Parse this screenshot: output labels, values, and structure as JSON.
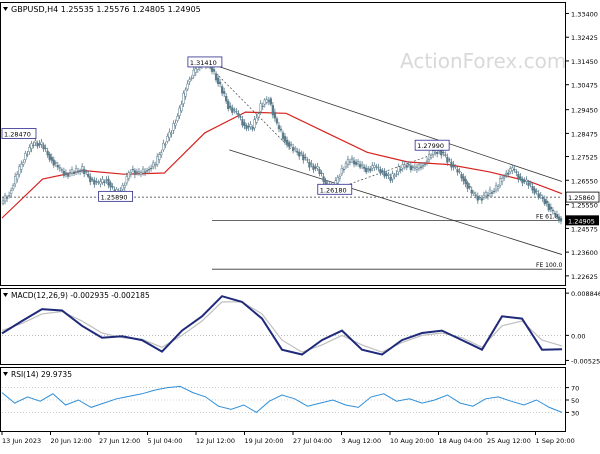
{
  "chart_data": [
    {
      "type": "candlestick",
      "title": "GBPUSD,H4  1.25535 1.25576 1.24805 1.24905",
      "watermark": "ActionForex.com",
      "ylim": [
        1.2225,
        1.3383
      ],
      "y_ticks": [
        "1.33400",
        "1.32425",
        "1.31450",
        "1.30475",
        "1.29450",
        "1.28475",
        "1.27525",
        "1.26550",
        "1.25550",
        "1.24575",
        "1.23600",
        "1.22625"
      ],
      "x_ticks": [
        "13 Jun 2023",
        "20 Jun 12:00",
        "27 Jun 12:00",
        "5 Jul 04:00",
        "12 Jul 12:00",
        "19 Jul 20:00",
        "27 Jul 04:00",
        "3 Aug 12:00",
        "10 Aug 20:00",
        "18 Aug 04:00",
        "25 Aug 12:00",
        "1 Sep 20:00"
      ],
      "close_path": [
        [
          0,
          1.256
        ],
        [
          1,
          1.26
        ],
        [
          2,
          1.268
        ],
        [
          3,
          1.276
        ],
        [
          4,
          1.281
        ],
        [
          5,
          1.28
        ],
        [
          6,
          1.275
        ],
        [
          7,
          1.2705
        ],
        [
          8,
          1.268
        ],
        [
          9,
          1.269
        ],
        [
          10,
          1.27
        ],
        [
          11,
          1.266
        ],
        [
          12,
          1.264
        ],
        [
          13,
          1.266
        ],
        [
          14,
          1.26
        ],
        [
          15,
          1.2625
        ],
        [
          16,
          1.27
        ],
        [
          17,
          1.268
        ],
        [
          18,
          1.27
        ],
        [
          19,
          1.272
        ],
        [
          20,
          1.28
        ],
        [
          21,
          1.286
        ],
        [
          22,
          1.294
        ],
        [
          23,
          1.306
        ],
        [
          24,
          1.311
        ],
        [
          25,
          1.3141
        ],
        [
          26,
          1.311
        ],
        [
          27,
          1.304
        ],
        [
          28,
          1.296
        ],
        [
          29,
          1.293
        ],
        [
          30,
          1.288
        ],
        [
          31,
          1.287
        ],
        [
          32,
          1.296
        ],
        [
          33,
          1.299
        ],
        [
          34,
          1.288
        ],
        [
          35,
          1.282
        ],
        [
          36,
          1.278
        ],
        [
          37,
          1.276
        ],
        [
          38,
          1.272
        ],
        [
          39,
          1.27
        ],
        [
          40,
          1.264
        ],
        [
          41,
          1.2625
        ],
        [
          42,
          1.27
        ],
        [
          43,
          1.274
        ],
        [
          44,
          1.272
        ],
        [
          45,
          1.27
        ],
        [
          46,
          1.271
        ],
        [
          47,
          1.269
        ],
        [
          48,
          1.266
        ],
        [
          49,
          1.27
        ],
        [
          50,
          1.272
        ],
        [
          51,
          1.27
        ],
        [
          52,
          1.272
        ],
        [
          53,
          1.276
        ],
        [
          54,
          1.278
        ],
        [
          55,
          1.274
        ],
        [
          56,
          1.27
        ],
        [
          57,
          1.266
        ],
        [
          58,
          1.26
        ],
        [
          59,
          1.258
        ],
        [
          60,
          1.26
        ],
        [
          61,
          1.262
        ],
        [
          62,
          1.268
        ],
        [
          63,
          1.27
        ],
        [
          64,
          1.266
        ],
        [
          65,
          1.264
        ],
        [
          66,
          1.26
        ],
        [
          67,
          1.257
        ],
        [
          68,
          1.252
        ],
        [
          69,
          1.2491
        ]
      ],
      "ma_path": [
        [
          0,
          1.25
        ],
        [
          5,
          1.266
        ],
        [
          10,
          1.2695
        ],
        [
          15,
          1.268
        ],
        [
          20,
          1.2685
        ],
        [
          25,
          1.285
        ],
        [
          30,
          1.2935
        ],
        [
          35,
          1.293
        ],
        [
          40,
          1.285
        ],
        [
          45,
          1.277
        ],
        [
          50,
          1.273
        ],
        [
          55,
          1.272
        ],
        [
          60,
          1.269
        ],
        [
          65,
          1.265
        ],
        [
          69,
          1.26
        ]
      ],
      "price_labels": [
        {
          "text": "1.31410",
          "i": 25,
          "y": 1.3141
        },
        {
          "text": "1.28470",
          "i": 0,
          "y": 1.2847
        },
        {
          "text": "1.25890",
          "i": 14,
          "y": 1.2589
        },
        {
          "text": "1.26180",
          "i": 41,
          "y": 1.2618
        },
        {
          "text": "1.27990",
          "i": 53,
          "y": 1.2799
        }
      ],
      "hlines": [
        {
          "y": 1.2586,
          "style": "dash",
          "label": "1.25860"
        },
        {
          "y": 1.249,
          "style": "solid",
          "label": "FE 61.8"
        },
        {
          "y": 1.229,
          "style": "solid",
          "label": "FE 100.0"
        }
      ],
      "current_price_label": "1.24905",
      "channel": {
        "upper": [
          [
            25,
            1.3141
          ],
          [
            69,
            1.265
          ]
        ],
        "lower": [
          [
            28,
            1.278
          ],
          [
            69,
            1.235
          ]
        ]
      }
    },
    {
      "type": "line",
      "title": "MACD(12,26,9) -0.002935 -0.002185",
      "ylim": [
        -0.006,
        0.0095
      ],
      "y_ticks": [
        "0.008846",
        "0.00",
        "-0.005252"
      ],
      "series": [
        {
          "values": [
            0.0004,
            0.003,
            0.0055,
            0.0052,
            0.002,
            -0.0005,
            -0.0002,
            -0.001,
            -0.0034,
            0.001,
            0.004,
            0.0082,
            0.007,
            0.0035,
            -0.003,
            -0.004,
            -0.001,
            0.001,
            -0.003,
            -0.004,
            -0.001,
            0.0005,
            0.001,
            -0.001,
            -0.003,
            0.004,
            0.0035,
            -0.003,
            -0.0029
          ]
        },
        {
          "values": [
            0.001,
            0.0025,
            0.0045,
            0.005,
            0.003,
            0.0005,
            -0.0005,
            -0.0008,
            -0.0025,
            0.0,
            0.003,
            0.007,
            0.007,
            0.0045,
            -0.001,
            -0.0035,
            -0.002,
            0.0,
            -0.002,
            -0.0035,
            -0.0015,
            0.0,
            0.0005,
            -0.0005,
            -0.0025,
            0.002,
            0.003,
            -0.001,
            -0.0022
          ]
        }
      ]
    },
    {
      "type": "line",
      "title": "RSI(14) 29.9735",
      "ylim": [
        0,
        100
      ],
      "y_ticks": [
        "70",
        "50",
        "30"
      ],
      "series": [
        {
          "values": [
            62,
            45,
            55,
            48,
            60,
            42,
            50,
            38,
            45,
            52,
            56,
            60,
            66,
            70,
            72,
            62,
            55,
            40,
            35,
            42,
            30,
            48,
            58,
            52,
            40,
            45,
            50,
            42,
            38,
            55,
            60,
            48,
            52,
            45,
            50,
            58,
            45,
            40,
            52,
            55,
            48,
            42,
            50,
            38,
            30
          ]
        }
      ]
    }
  ]
}
